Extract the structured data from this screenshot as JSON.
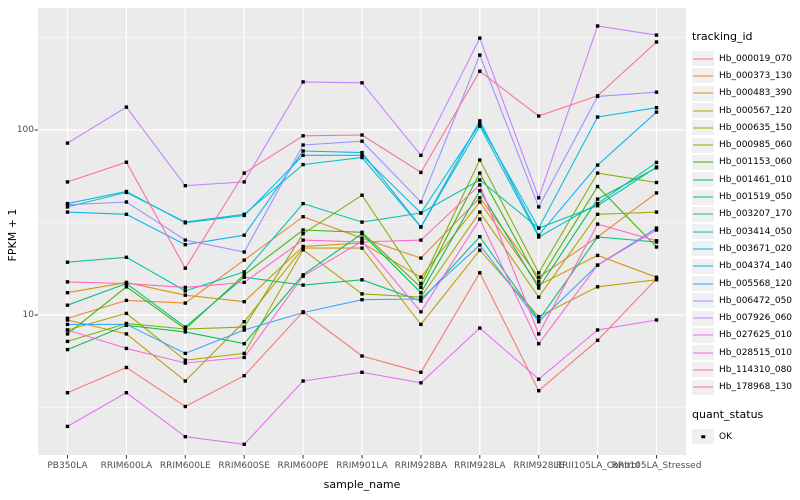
{
  "chart_data": {
    "type": "line",
    "title": "",
    "xlabel": "sample_name",
    "ylabel": "FPKM + 1",
    "y_scale": "log10",
    "ylim": [
      1.75,
      460
    ],
    "y_major_ticks": [
      100,
      10
    ],
    "y_minor_gridlines": [
      316,
      31.6,
      3.16
    ],
    "grid": true,
    "panel_bg": "#EBEBEB",
    "gridline_color": "#FFFFFF",
    "tick_text_color": "#4D4D4D",
    "legend_title": "tracking_id",
    "legend_position": "right",
    "legend_key_bg": "#F0F0F0",
    "marker": {
      "shape": "square",
      "color": "#000000",
      "legend_title": "quant_status",
      "legend_label": "OK"
    },
    "categories": [
      "PB350LA",
      "RRIM600LA",
      "RRIM600LE",
      "RRIM600SE",
      "RRIM600PE",
      "RRIM901LA",
      "RRIM928BA",
      "RRIM928LA",
      "RRIM928LE",
      "RRII105LA_Control",
      "RRII105LA_Stressed"
    ],
    "series": [
      {
        "name": "Hb_000019_070",
        "color": "#F8766D",
        "values": [
          3.8,
          5.2,
          3.2,
          4.7,
          10.4,
          6.0,
          4.9,
          16.9,
          3.9,
          7.3,
          15.7
        ]
      },
      {
        "name": "Hb_000373_130",
        "color": "#EA8331",
        "values": [
          9.6,
          12.0,
          11.6,
          19.8,
          34.0,
          26.0,
          20.3,
          43.0,
          16.0,
          26.4,
          45.7
        ]
      },
      {
        "name": "Hb_000483_390",
        "color": "#D89000",
        "values": [
          13.2,
          15.0,
          12.8,
          11.8,
          23.5,
          24.5,
          16.0,
          40.8,
          14.5,
          21.0,
          16.0
        ]
      },
      {
        "name": "Hb_000567_120",
        "color": "#C09B00",
        "values": [
          9.4,
          7.9,
          4.4,
          9.2,
          23.0,
          23.0,
          8.9,
          22.4,
          9.8,
          14.2,
          15.5
        ]
      },
      {
        "name": "Hb_000635_150",
        "color": "#A3A500",
        "values": [
          8.3,
          10.2,
          5.7,
          6.2,
          22.5,
          13.0,
          12.5,
          36.0,
          12.5,
          35.0,
          36.0
        ]
      },
      {
        "name": "Hb_000985_060",
        "color": "#7CAE00",
        "values": [
          7.2,
          9.0,
          8.4,
          8.6,
          27.5,
          44.4,
          14.8,
          68.8,
          16.9,
          58.5,
          52.0
        ]
      },
      {
        "name": "Hb_001153_060",
        "color": "#39B600",
        "values": [
          7.9,
          14.2,
          8.4,
          16.5,
          28.8,
          28.0,
          14.1,
          58.5,
          15.2,
          49.5,
          23.3
        ]
      },
      {
        "name": "Hb_001461_010",
        "color": "#00BB4E",
        "values": [
          6.5,
          8.8,
          8.1,
          7.0,
          16.5,
          27.5,
          13.2,
          47.0,
          14.0,
          42.3,
          62.5
        ]
      },
      {
        "name": "Hb_001519_050",
        "color": "#00BF7D",
        "values": [
          11.3,
          14.8,
          8.6,
          16.0,
          14.5,
          15.5,
          11.9,
          26.5,
          9.4,
          26.4,
          24.8
        ]
      },
      {
        "name": "Hb_003207_170",
        "color": "#00C1A3",
        "values": [
          19.3,
          20.5,
          13.5,
          17.1,
          40.0,
          31.8,
          35.6,
          53.7,
          29.5,
          39.0,
          63.0
        ]
      },
      {
        "name": "Hb_003414_050",
        "color": "#00BFC4",
        "values": [
          38.4,
          46.0,
          31.8,
          35.0,
          65.0,
          71.0,
          29.9,
          105.0,
          26.4,
          40.0,
          66.8
        ]
      },
      {
        "name": "Hb_003671_020",
        "color": "#00BAE0",
        "values": [
          40.0,
          46.5,
          31.5,
          34.5,
          73.0,
          73.0,
          35.6,
          108.0,
          29.5,
          117.5,
          132.0
        ]
      },
      {
        "name": "Hb_004374_140",
        "color": "#00B0F6",
        "values": [
          36.0,
          35.0,
          24.0,
          27.0,
          77.0,
          75.5,
          29.9,
          112.0,
          27.0,
          64.6,
          125.0
        ]
      },
      {
        "name": "Hb_005568_120",
        "color": "#35A2FF",
        "values": [
          8.9,
          8.9,
          6.2,
          8.3,
          10.3,
          12.1,
          12.2,
          23.9,
          9.2,
          18.6,
          29.5
        ]
      },
      {
        "name": "Hb_006472_050",
        "color": "#9590FF",
        "values": [
          39.4,
          40.8,
          25.4,
          21.9,
          83.0,
          87.0,
          40.8,
          254.0,
          38.4,
          152.0,
          160.0
        ]
      },
      {
        "name": "Hb_007926_060",
        "color": "#C77CFF",
        "values": [
          85.0,
          133.0,
          50.0,
          52.4,
          182.0,
          180.0,
          73.0,
          314.0,
          43.0,
          365.0,
          326.0
        ]
      },
      {
        "name": "Hb_027625_010",
        "color": "#E76BF3",
        "values": [
          2.5,
          3.8,
          2.2,
          2.0,
          4.4,
          4.9,
          4.3,
          8.5,
          4.5,
          8.3,
          9.4
        ]
      },
      {
        "name": "Hb_028515_010",
        "color": "#FA62DB",
        "values": [
          8.3,
          6.6,
          5.5,
          5.9,
          16.2,
          25.0,
          10.4,
          33.0,
          7.0,
          18.6,
          28.8
        ]
      },
      {
        "name": "Hb_114310_080",
        "color": "#FF61C3",
        "values": [
          15.1,
          14.8,
          14.1,
          15.0,
          25.4,
          24.8,
          25.4,
          50.5,
          7.9,
          31.0,
          25.2
        ]
      },
      {
        "name": "Hb_178968_130",
        "color": "#FF6A98",
        "values": [
          52.4,
          67.0,
          17.9,
          58.5,
          93.0,
          94.0,
          59.0,
          208.0,
          119.0,
          153.0,
          299.0
        ]
      }
    ]
  }
}
